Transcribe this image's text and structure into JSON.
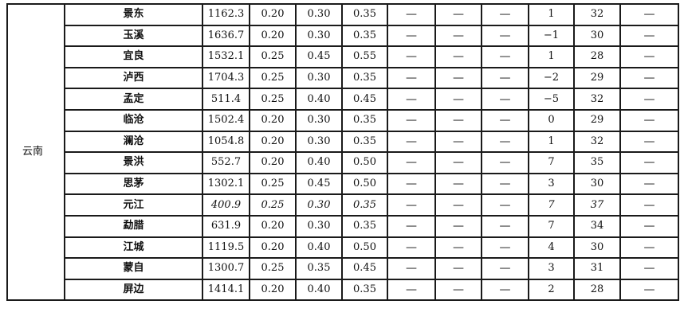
{
  "province": "云南",
  "rows": [
    {
      "city": "景东",
      "elevation": "1162.3",
      "w10": "0.20",
      "w50": "0.30",
      "w100": "0.35",
      "s10": "—",
      "s50": "—",
      "s100": "—",
      "tmin": "1",
      "tmax": "32",
      "extra": "—"
    },
    {
      "city": "玉溪",
      "elevation": "1636.7",
      "w10": "0.20",
      "w50": "0.30",
      "w100": "0.35",
      "s10": "—",
      "s50": "—",
      "s100": "—",
      "tmin": "−1",
      "tmax": "30",
      "extra": "—"
    },
    {
      "city": "宜良",
      "elevation": "1532.1",
      "w10": "0.25",
      "w50": "0.45",
      "w100": "0.55",
      "s10": "—",
      "s50": "—",
      "s100": "—",
      "tmin": "1",
      "tmax": "28",
      "extra": "—"
    },
    {
      "city": "泸西",
      "elevation": "1704.3",
      "w10": "0.25",
      "w50": "0.30",
      "w100": "0.35",
      "s10": "—",
      "s50": "—",
      "s100": "—",
      "tmin": "−2",
      "tmax": "29",
      "extra": "—"
    },
    {
      "city": "孟定",
      "elevation": "511.4",
      "w10": "0.25",
      "w50": "0.40",
      "w100": "0.45",
      "s10": "—",
      "s50": "—",
      "s100": "—",
      "tmin": "−5",
      "tmax": "32",
      "extra": "—"
    },
    {
      "city": "临沧",
      "elevation": "1502.4",
      "w10": "0.20",
      "w50": "0.30",
      "w100": "0.35",
      "s10": "—",
      "s50": "—",
      "s100": "—",
      "tmin": "0",
      "tmax": "29",
      "extra": "—"
    },
    {
      "city": "澜沧",
      "elevation": "1054.8",
      "w10": "0.20",
      "w50": "0.30",
      "w100": "0.35",
      "s10": "—",
      "s50": "—",
      "s100": "—",
      "tmin": "1",
      "tmax": "32",
      "extra": "—"
    },
    {
      "city": "景洪",
      "elevation": "552.7",
      "w10": "0.20",
      "w50": "0.40",
      "w100": "0.50",
      "s10": "—",
      "s50": "—",
      "s100": "—",
      "tmin": "7",
      "tmax": "35",
      "extra": "—"
    },
    {
      "city": "思茅",
      "elevation": "1302.1",
      "w10": "0.25",
      "w50": "0.45",
      "w100": "0.50",
      "s10": "—",
      "s50": "—",
      "s100": "—",
      "tmin": "3",
      "tmax": "30",
      "extra": "—"
    },
    {
      "city": "元江",
      "elevation": "400.9",
      "w10": "0.25",
      "w50": "0.30",
      "w100": "0.35",
      "s10": "—",
      "s50": "—",
      "s100": "—",
      "tmin": "7",
      "tmax": "37",
      "extra": "—"
    },
    {
      "city": "勐腊",
      "elevation": "631.9",
      "w10": "0.20",
      "w50": "0.30",
      "w100": "0.35",
      "s10": "—",
      "s50": "—",
      "s100": "—",
      "tmin": "7",
      "tmax": "34",
      "extra": "—"
    },
    {
      "city": "江城",
      "elevation": "1119.5",
      "w10": "0.20",
      "w50": "0.40",
      "w100": "0.50",
      "s10": "—",
      "s50": "—",
      "s100": "—",
      "tmin": "4",
      "tmax": "30",
      "extra": "—"
    },
    {
      "city": "蒙自",
      "elevation": "1300.7",
      "w10": "0.25",
      "w50": "0.35",
      "w100": "0.45",
      "s10": "—",
      "s50": "—",
      "s100": "—",
      "tmin": "3",
      "tmax": "31",
      "extra": "—"
    },
    {
      "city": "屏边",
      "elevation": "1414.1",
      "w10": "0.20",
      "w50": "0.40",
      "w100": "0.35",
      "s10": "—",
      "s50": "—",
      "s100": "—",
      "tmin": "2",
      "tmax": "28",
      "extra": "—"
    }
  ]
}
